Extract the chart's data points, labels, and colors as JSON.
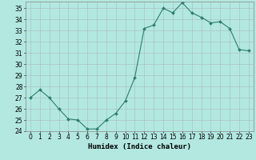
{
  "x": [
    0,
    1,
    2,
    3,
    4,
    5,
    6,
    7,
    8,
    9,
    10,
    11,
    12,
    13,
    14,
    15,
    16,
    17,
    18,
    19,
    20,
    21,
    22,
    23
  ],
  "y": [
    27,
    27.7,
    27,
    26,
    25.1,
    25,
    24.2,
    24.2,
    25,
    25.6,
    26.7,
    28.8,
    33.2,
    33.5,
    35.0,
    34.6,
    35.5,
    34.6,
    34.2,
    33.7,
    33.8,
    33.2,
    31.3,
    31.2
  ],
  "line_color": "#2e7d6e",
  "marker": "D",
  "marker_size": 2.0,
  "bg_color": "#b2e8e0",
  "grid_color": "#aaaaaa",
  "xlabel": "Humidex (Indice chaleur)",
  "ylabel": "",
  "ylim": [
    24,
    35.6
  ],
  "xlim": [
    -0.5,
    23.5
  ],
  "yticks": [
    24,
    25,
    26,
    27,
    28,
    29,
    30,
    31,
    32,
    33,
    34,
    35
  ],
  "xticks": [
    0,
    1,
    2,
    3,
    4,
    5,
    6,
    7,
    8,
    9,
    10,
    11,
    12,
    13,
    14,
    15,
    16,
    17,
    18,
    19,
    20,
    21,
    22,
    23
  ],
  "xlabel_fontsize": 6.5,
  "tick_fontsize": 5.5
}
